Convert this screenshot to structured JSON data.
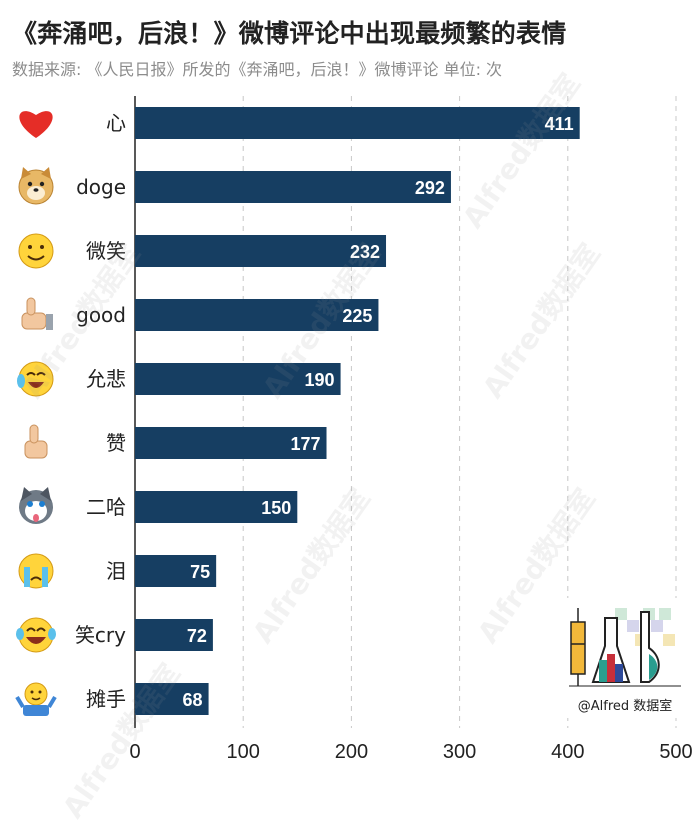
{
  "title": "《奔涌吧，后浪！》微博评论中出现最频繁的表情",
  "subtitle": "数据来源: 《人民日报》所发的《奔涌吧，后浪！》微博评论 单位: 次",
  "watermark_text": "Alfred数据室",
  "logo": {
    "caption": "@Alfred 数据室"
  },
  "colors": {
    "bar": "#163e62",
    "grid": "#c8c8c8",
    "axis": "#222222",
    "label_in_bar": "#ffffff"
  },
  "chart_data": {
    "type": "bar",
    "orientation": "horizontal",
    "categories": [
      "心",
      "doge",
      "微笑",
      "good",
      "允悲",
      "赞",
      "二哈",
      "泪",
      "笑cry",
      "摊手"
    ],
    "icons": [
      "heart-icon",
      "doge-icon",
      "smile-icon",
      "good-icon",
      "yunbei-icon",
      "thumbs-up-icon",
      "husky-icon",
      "tears-icon",
      "laugh-cry-icon",
      "shrug-icon"
    ],
    "values": [
      411,
      292,
      232,
      225,
      190,
      177,
      150,
      75,
      72,
      68
    ],
    "xlim": [
      0,
      500
    ],
    "xticks": [
      0,
      100,
      200,
      300,
      400,
      500
    ],
    "xlabel": "",
    "ylabel": "",
    "grid": "vertical dashed",
    "data_labels": "inside bar end"
  }
}
